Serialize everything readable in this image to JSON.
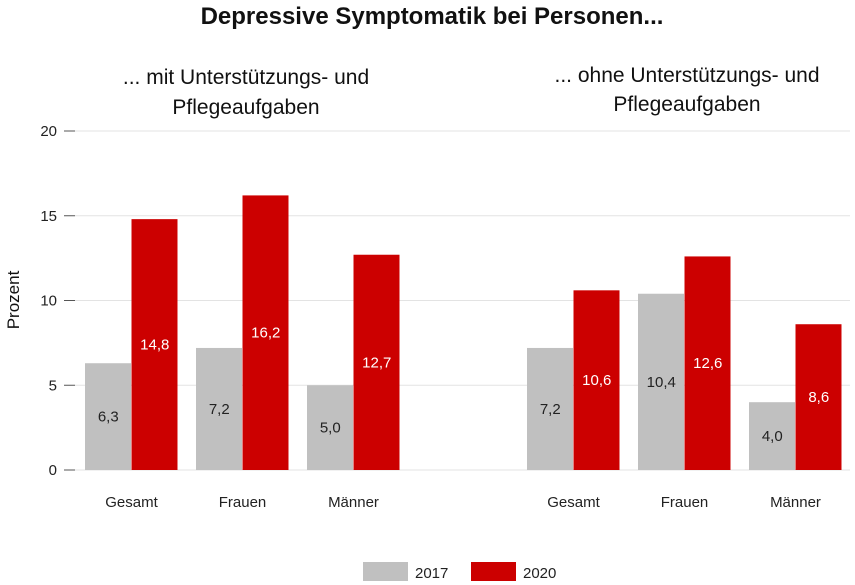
{
  "chart_data": {
    "type": "bar",
    "title": "Depressive Symptomatik bei Personen...",
    "ylabel": "Prozent",
    "ylim": [
      0,
      20
    ],
    "yticks": [
      "0",
      "5",
      "10",
      "15",
      "20"
    ],
    "grid": true,
    "legend_position": "bottom",
    "colors": {
      "2017": "#c0c0c0",
      "2020": "#cc0000"
    },
    "panels": [
      {
        "subtitle_line1": "... mit Unterstützungs- und",
        "subtitle_line2": "Pflegeaufgaben",
        "categories": [
          "Gesamt",
          "Frauen",
          "Männer"
        ],
        "series": [
          {
            "name": "2017",
            "values": [
              6.3,
              7.2,
              5.0
            ],
            "labels": [
              "6,3",
              "7,2",
              "5,0"
            ]
          },
          {
            "name": "2020",
            "values": [
              14.8,
              16.2,
              12.7
            ],
            "labels": [
              "14,8",
              "16,2",
              "12,7"
            ]
          }
        ]
      },
      {
        "subtitle_line1": "... ohne Unterstützungs- und",
        "subtitle_line2": "Pflegeaufgaben",
        "categories": [
          "Gesamt",
          "Frauen",
          "Männer"
        ],
        "series": [
          {
            "name": "2017",
            "values": [
              7.2,
              10.4,
              4.0
            ],
            "labels": [
              "7,2",
              "10,4",
              "4,0"
            ]
          },
          {
            "name": "2020",
            "values": [
              10.6,
              12.6,
              8.6
            ],
            "labels": [
              "10,6",
              "12,6",
              "8,6"
            ]
          }
        ]
      }
    ],
    "legend": [
      "2017",
      "2020"
    ]
  }
}
